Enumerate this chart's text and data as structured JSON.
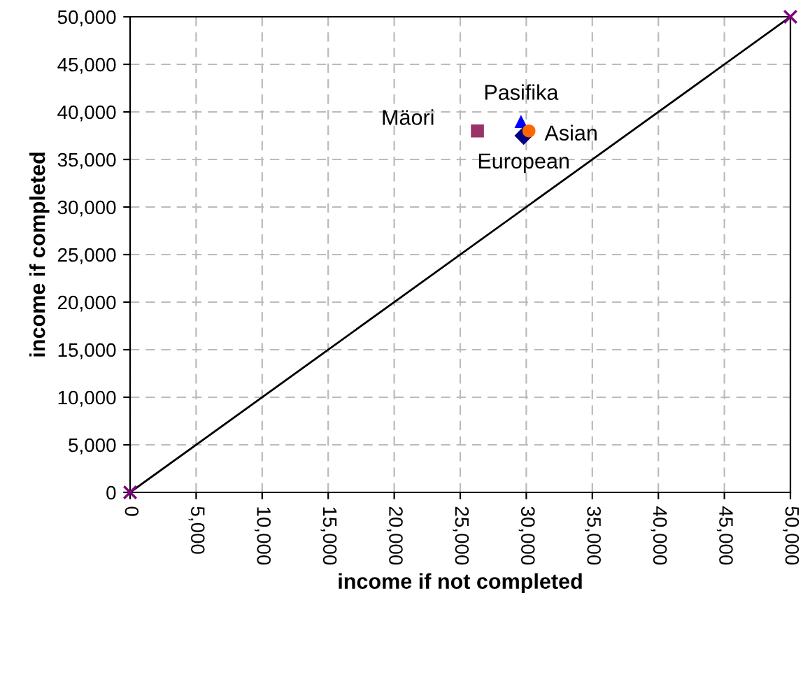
{
  "chart_data": {
    "type": "scatter",
    "xlabel": "income if not completed",
    "ylabel": "income if completed",
    "xlim": [
      0,
      50000
    ],
    "ylim": [
      0,
      50000
    ],
    "xticks": [
      {
        "value": 0,
        "label": "0"
      },
      {
        "value": 5000,
        "label": "5,000"
      },
      {
        "value": 10000,
        "label": "10,000"
      },
      {
        "value": 15000,
        "label": "15,000"
      },
      {
        "value": 20000,
        "label": "20,000"
      },
      {
        "value": 25000,
        "label": "25,000"
      },
      {
        "value": 30000,
        "label": "30,000"
      },
      {
        "value": 35000,
        "label": "35,000"
      },
      {
        "value": 40000,
        "label": "40,000"
      },
      {
        "value": 45000,
        "label": "45,000"
      },
      {
        "value": 50000,
        "label": "50,000"
      }
    ],
    "yticks": [
      {
        "value": 0,
        "label": "0"
      },
      {
        "value": 5000,
        "label": "5,000"
      },
      {
        "value": 10000,
        "label": "10,000"
      },
      {
        "value": 15000,
        "label": "15,000"
      },
      {
        "value": 20000,
        "label": "20,000"
      },
      {
        "value": 25000,
        "label": "25,000"
      },
      {
        "value": 30000,
        "label": "30,000"
      },
      {
        "value": 35000,
        "label": "35,000"
      },
      {
        "value": 40000,
        "label": "40,000"
      },
      {
        "value": 45000,
        "label": "45,000"
      },
      {
        "value": 50000,
        "label": "50,000"
      }
    ],
    "grid": true,
    "legend": false,
    "series": [
      {
        "type": "line",
        "color": "#000000",
        "marker": "none",
        "x": [
          0,
          50000
        ],
        "values": [
          0,
          50000
        ]
      },
      {
        "type": "scatter",
        "color": "#800080",
        "marker": "cross",
        "x": [
          0,
          50000
        ],
        "values": [
          0,
          50000
        ]
      },
      {
        "name": "Mäori",
        "color": "#993366",
        "marker": "square",
        "x": [
          26300
        ],
        "values": [
          38000
        ]
      },
      {
        "name": "Pasifika",
        "color": "#0000ff",
        "marker": "triangle",
        "x": [
          29600
        ],
        "values": [
          39000
        ]
      },
      {
        "name": "European",
        "color": "#000080",
        "marker": "diamond",
        "x": [
          29800
        ],
        "values": [
          37500
        ]
      },
      {
        "name": "Asian",
        "color": "#ff6600",
        "marker": "circle",
        "x": [
          30200
        ],
        "values": [
          38000
        ]
      }
    ]
  }
}
